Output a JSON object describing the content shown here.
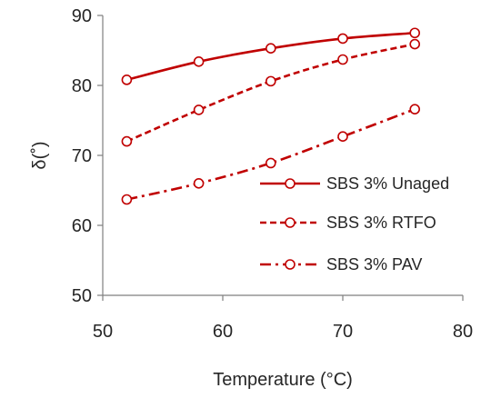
{
  "chart_data": {
    "type": "line",
    "xlabel": "Temperature (°C)",
    "ylabel": "δ(˚)",
    "xlim": [
      50,
      80
    ],
    "ylim": [
      50,
      90
    ],
    "x_ticks": [
      50,
      60,
      70,
      80
    ],
    "y_ticks": [
      50,
      60,
      70,
      80,
      90
    ],
    "grid": false,
    "legend_position": "right",
    "series": [
      {
        "name": "SBS 3% Unaged",
        "line_style": "solid",
        "marker": "circle",
        "x": [
          52,
          58,
          64,
          70,
          76
        ],
        "values": [
          80.8,
          83.4,
          85.3,
          86.7,
          87.5
        ]
      },
      {
        "name": "SBS 3% RTFO",
        "line_style": "dashed",
        "marker": "circle",
        "x": [
          52,
          58,
          64,
          70,
          76
        ],
        "values": [
          72.0,
          76.5,
          80.6,
          83.7,
          85.9
        ]
      },
      {
        "name": "SBS 3% PAV",
        "line_style": "dash-dot",
        "marker": "circle",
        "x": [
          52,
          58,
          64,
          70,
          76
        ],
        "values": [
          63.7,
          66.0,
          68.9,
          72.7,
          76.6
        ]
      }
    ],
    "colors": {
      "series": "#c00000",
      "axis": "#7f7f7f",
      "text": "#262626"
    }
  }
}
